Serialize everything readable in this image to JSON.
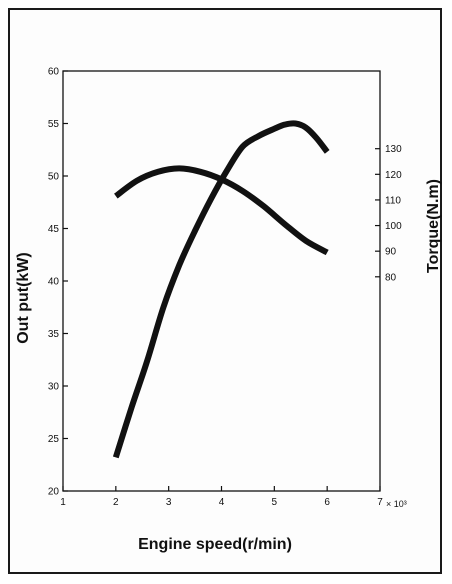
{
  "chart_data": {
    "type": "line",
    "title": "",
    "xlabel": "Engine speed(r/min)",
    "x_multiplier_label": "× 10³",
    "ylabel_left": "Out put(kW)",
    "ylabel_right": "Torque(N.m)",
    "xlim": [
      1,
      7
    ],
    "ylim_left": [
      20,
      60
    ],
    "x_ticks": [
      "1",
      "2",
      "3",
      "4",
      "5",
      "6",
      "7"
    ],
    "y_ticks_left": [
      "20",
      "25",
      "30",
      "35",
      "40",
      "45",
      "50",
      "55",
      "60"
    ],
    "y_ticks_right": [
      "80",
      "90",
      "100",
      "110",
      "120",
      "130"
    ],
    "right_axis_map": {
      "value_at_bottom_ref": 80,
      "left_at_bottom_ref": 40.4,
      "value_at_top_ref": 130,
      "left_at_top_ref": 52.6
    },
    "grid": false,
    "series": [
      {
        "axis": "left",
        "x": [
          2.0,
          2.3,
          2.6,
          2.9,
          3.2,
          3.5,
          3.8,
          4.1,
          4.4,
          4.7,
          5.0,
          5.2,
          5.4,
          5.6,
          5.8,
          6.0
        ],
        "y": [
          23.2,
          28.0,
          32.5,
          37.5,
          41.5,
          44.8,
          47.8,
          50.5,
          52.8,
          53.8,
          54.5,
          54.9,
          55.0,
          54.6,
          53.6,
          52.3
        ]
      },
      {
        "axis": "right",
        "x": [
          2.0,
          2.4,
          2.8,
          3.2,
          3.6,
          4.0,
          4.4,
          4.8,
          5.2,
          5.6,
          6.0
        ],
        "y": [
          111.5,
          117.5,
          121.0,
          122.3,
          121.0,
          118.0,
          113.5,
          107.5,
          100.5,
          94.0,
          89.5
        ]
      }
    ]
  }
}
